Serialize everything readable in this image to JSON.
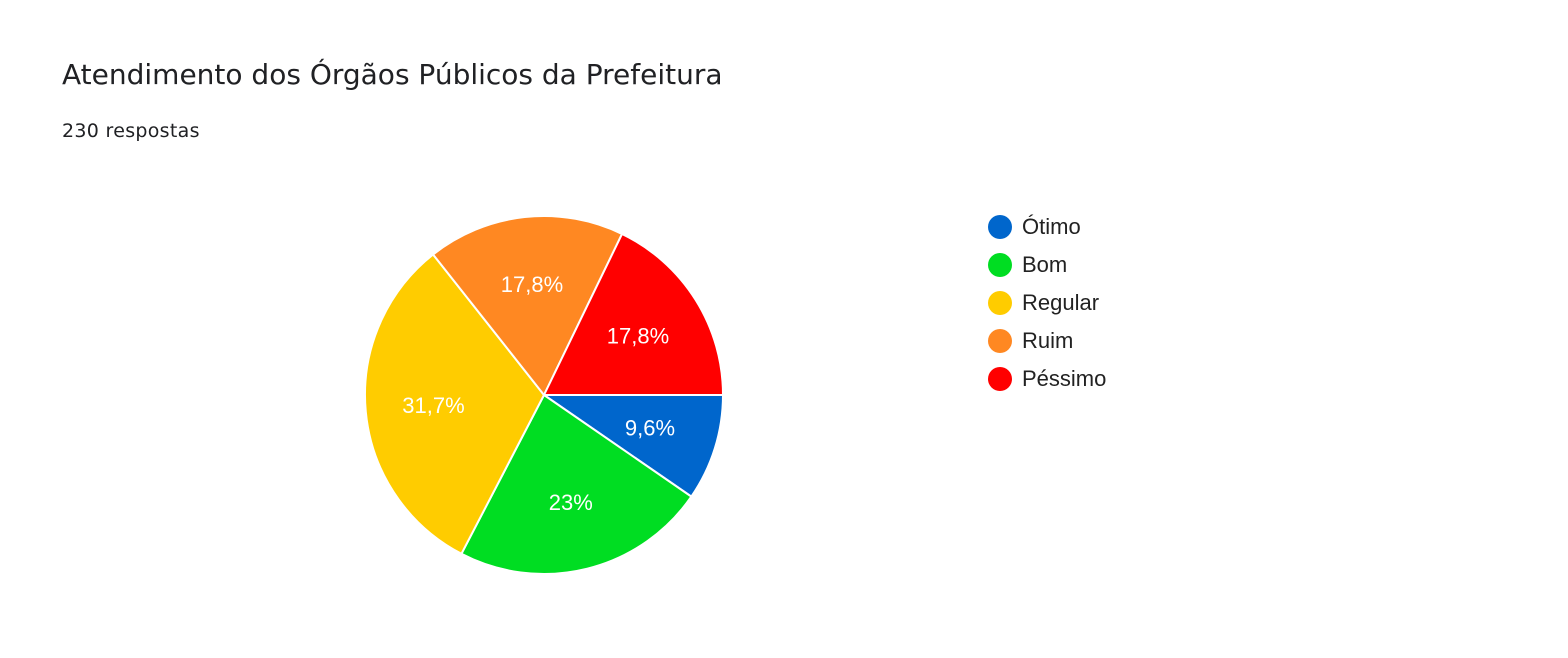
{
  "header": {
    "title": "Atendimento dos Órgãos Públicos da Prefeitura",
    "responses": "230 respostas"
  },
  "chart_data": {
    "type": "pie",
    "start": "3 o'clock, clockwise",
    "categories": [
      "Ótimo",
      "Bom",
      "Regular",
      "Ruim",
      "Péssimo"
    ],
    "values": [
      9.6,
      23,
      31.7,
      17.8,
      17.8
    ],
    "labels": [
      "9,6%",
      "23%",
      "31,7%",
      "17,8%",
      "17,8%"
    ],
    "colors": [
      "#0066cc",
      "#00dd22",
      "#ffcc00",
      "#ff8822",
      "#ff0000"
    ],
    "legend": "right"
  }
}
